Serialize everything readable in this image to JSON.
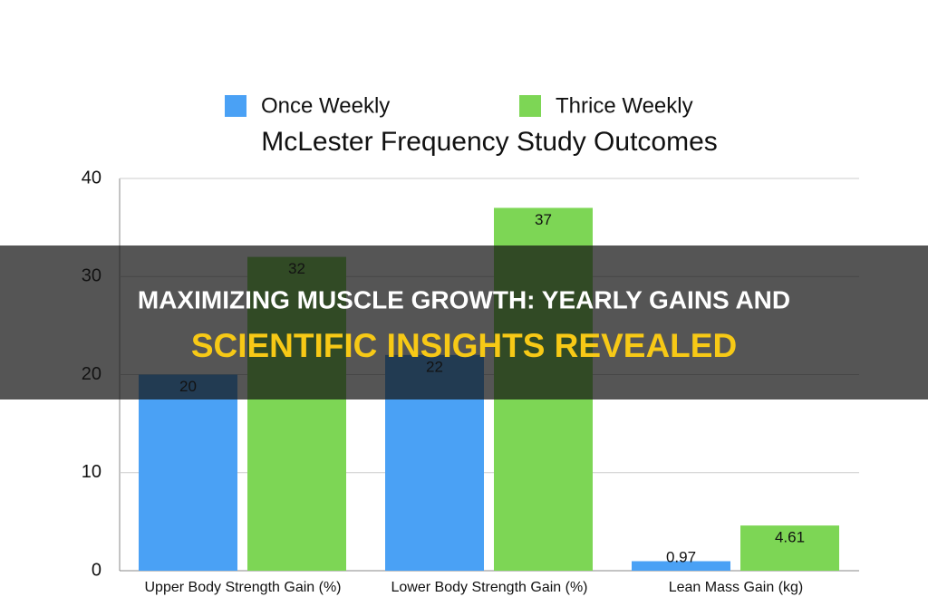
{
  "chart_data": {
    "type": "bar",
    "title": "McLester Frequency Study Outcomes",
    "categories": [
      "Upper Body Strength Gain (%)",
      "Lower Body Strength Gain (%)",
      "Lean Mass Gain (kg)"
    ],
    "series": [
      {
        "name": "Once Weekly",
        "color": "#4aa1f5",
        "values": [
          20,
          22,
          0.97
        ]
      },
      {
        "name": "Thrice Weekly",
        "color": "#7dd655",
        "values": [
          32,
          37,
          4.61
        ]
      }
    ],
    "ylim": [
      0,
      40
    ],
    "yticks": [
      0,
      10,
      20,
      30,
      40
    ],
    "grid": true,
    "legend": "top"
  },
  "banner": {
    "lines": [
      "MAXIMIZING MUSCLE GROWTH: YEARLY GAINS AND",
      "SCIENTIFIC INSIGHTS REVEALED"
    ]
  }
}
